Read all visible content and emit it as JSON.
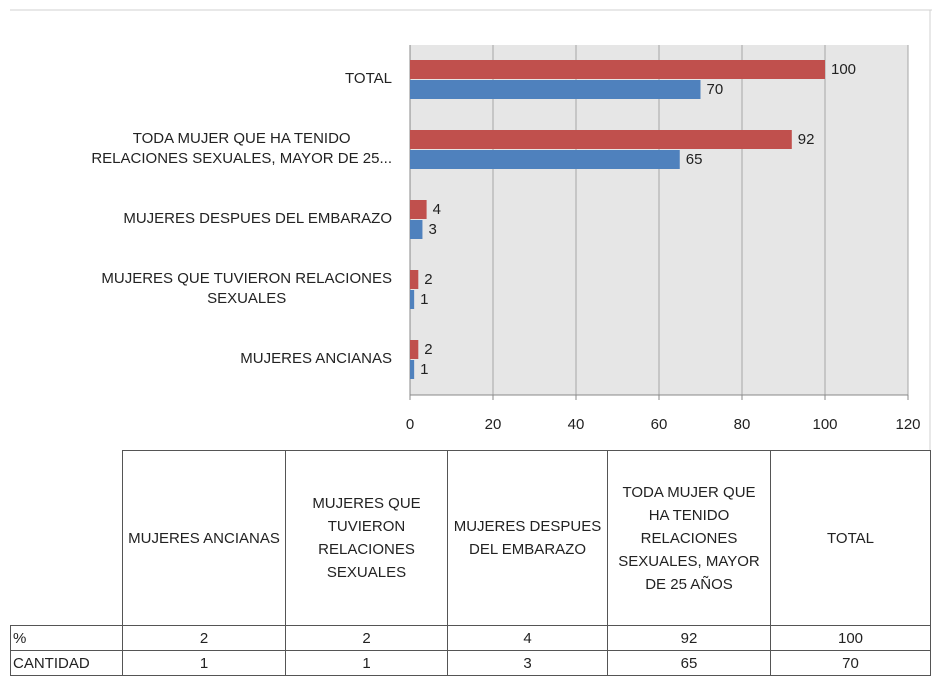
{
  "chart_data": {
    "type": "bar",
    "orientation": "horizontal",
    "categories": [
      "MUJERES ANCIANAS",
      "MUJERES QUE TUVIERON RELACIONES SEXUALES",
      "MUJERES DESPUES DEL EMBARAZO",
      "TODA MUJER QUE HA TENIDO RELACIONES SEXUALES, MAYOR DE 25 AÑOS",
      "TOTAL"
    ],
    "axis_labels": [
      "MUJERES ANCIANAS",
      "MUJERES QUE TUVIERON RELACIONES\nSEXUALES",
      "MUJERES DESPUES DEL EMBARAZO",
      "TODA MUJER QUE HA TENIDO\nRELACIONES SEXUALES, MAYOR DE 25...",
      "TOTAL"
    ],
    "series": [
      {
        "name": "%",
        "color": "#c0504d",
        "values": [
          2,
          2,
          4,
          92,
          100
        ]
      },
      {
        "name": "CANTIDAD",
        "color": "#4f81bd",
        "values": [
          1,
          1,
          3,
          65,
          70
        ]
      }
    ],
    "xlim": [
      0,
      120
    ],
    "xticks": [
      0,
      20,
      40,
      60,
      80,
      100,
      120
    ],
    "grid": true,
    "data_table": true
  }
}
